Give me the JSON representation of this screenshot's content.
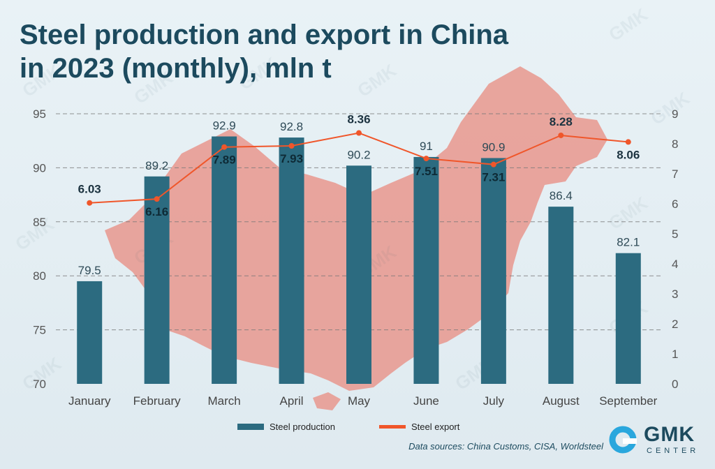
{
  "title_line1": "Steel production and export in China",
  "title_line2": "in 2023 (monthly), mln t",
  "source": "Data sources: China Customs, CISA, Worldsteel",
  "logo": {
    "name": "GMK",
    "sub": "CENTER",
    "icon": "gmk-ring-logo-icon"
  },
  "watermark_text": "GMK",
  "colors": {
    "title": "#1c4a5e",
    "bar": "#2c6b80",
    "line": "#f0562a",
    "map": "#e8948a",
    "grid": "#777777",
    "logo_ring": "#2aa7dd"
  },
  "chart_data": {
    "type": "bar",
    "categories": [
      "January",
      "February",
      "March",
      "April",
      "May",
      "June",
      "July",
      "August",
      "September"
    ],
    "series": [
      {
        "name": "Steel production",
        "type": "bar",
        "axis": "left",
        "values": [
          79.5,
          89.2,
          92.9,
          92.8,
          90.2,
          91,
          90.9,
          86.4,
          82.1
        ],
        "labels": [
          "79.5",
          "89.2",
          "92.9",
          "92.8",
          "90.2",
          "91",
          "90.9",
          "86.4",
          "82.1"
        ]
      },
      {
        "name": "Steel export",
        "type": "line",
        "axis": "right",
        "values": [
          6.03,
          6.16,
          7.89,
          7.93,
          8.36,
          7.51,
          7.31,
          8.28,
          8.06
        ],
        "labels": [
          "6.03",
          "6.16",
          "7.89",
          "7.93",
          "8.36",
          "7.51",
          "7.31",
          "8.28",
          "8.06"
        ]
      }
    ],
    "y_left": {
      "range": [
        70,
        95
      ],
      "ticks": [
        "70",
        "75",
        "80",
        "85",
        "90",
        "95"
      ]
    },
    "y_right": {
      "range": [
        0,
        9
      ],
      "ticks": [
        "0",
        "1",
        "2",
        "3",
        "4",
        "5",
        "6",
        "7",
        "8",
        "9"
      ]
    },
    "grid": true,
    "legend_position": "bottom"
  }
}
